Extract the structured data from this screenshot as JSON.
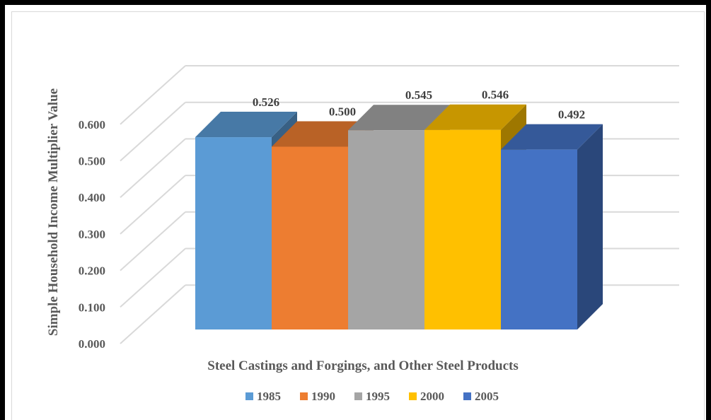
{
  "chart_data": {
    "type": "bar",
    "style": "3d-clustered-column",
    "categories": [
      "Steel Castings and Forgings, and Other Steel Products"
    ],
    "series": [
      {
        "name": "1985",
        "values": [
          0.526
        ],
        "color": "#5b9bd5"
      },
      {
        "name": "1990",
        "values": [
          0.5
        ],
        "color": "#ed7d31"
      },
      {
        "name": "1995",
        "values": [
          0.545
        ],
        "color": "#a5a5a5"
      },
      {
        "name": "2000",
        "values": [
          0.546
        ],
        "color": "#ffc000"
      },
      {
        "name": "2005",
        "values": [
          0.492
        ],
        "color": "#4472c4"
      }
    ],
    "data_labels": [
      "0.526",
      "0.500",
      "0.545",
      "0.546",
      "0.492"
    ],
    "yticks": [
      "0.000",
      "0.100",
      "0.200",
      "0.300",
      "0.400",
      "0.500",
      "0.600"
    ],
    "ylim": [
      0,
      0.6
    ],
    "xlabel": "Steel Castings and Forgings, and Other Steel Products",
    "ylabel": "Simple Household Income Multiplier Value",
    "grid": true,
    "legend": "bottom"
  }
}
